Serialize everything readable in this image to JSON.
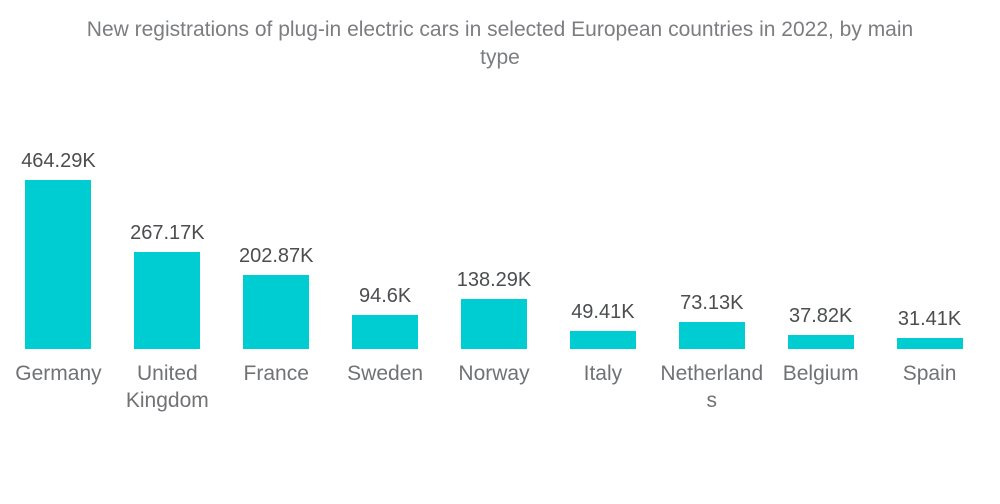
{
  "page": {
    "background": "#FFFFFF",
    "title_lines": [
      "New registrations of plug-in electric cars in selected European countries in 2022, by main",
      "type"
    ]
  },
  "chart_data": {
    "type": "bar",
    "title": "New registrations of plug-in electric cars in selected European countries in 2022, by main type",
    "categories": [
      "Germany",
      "United Kingdom",
      "France",
      "Sweden",
      "Norway",
      "Italy",
      "Netherlands",
      "Belgium",
      "Spain"
    ],
    "values": [
      464290,
      267170,
      202870,
      94600,
      138290,
      49410,
      73130,
      37820,
      31410
    ],
    "value_labels": [
      "464.29K",
      "267.17K",
      "202.87K",
      "94.6K",
      "138.29K",
      "49.41K",
      "73.13K",
      "37.82K",
      "31.41K"
    ],
    "xlabel": "",
    "ylabel": "",
    "ylim": [
      0,
      464290
    ],
    "grid": false,
    "axes_visible": false,
    "legend": "none",
    "data_label_position": "above-bars",
    "bar_color": "#00CDD2",
    "colors": {
      "title": "#7B7D80",
      "value_label": "#4B4D4F",
      "category_label": "#707275",
      "background": "#FFFFFF"
    }
  }
}
